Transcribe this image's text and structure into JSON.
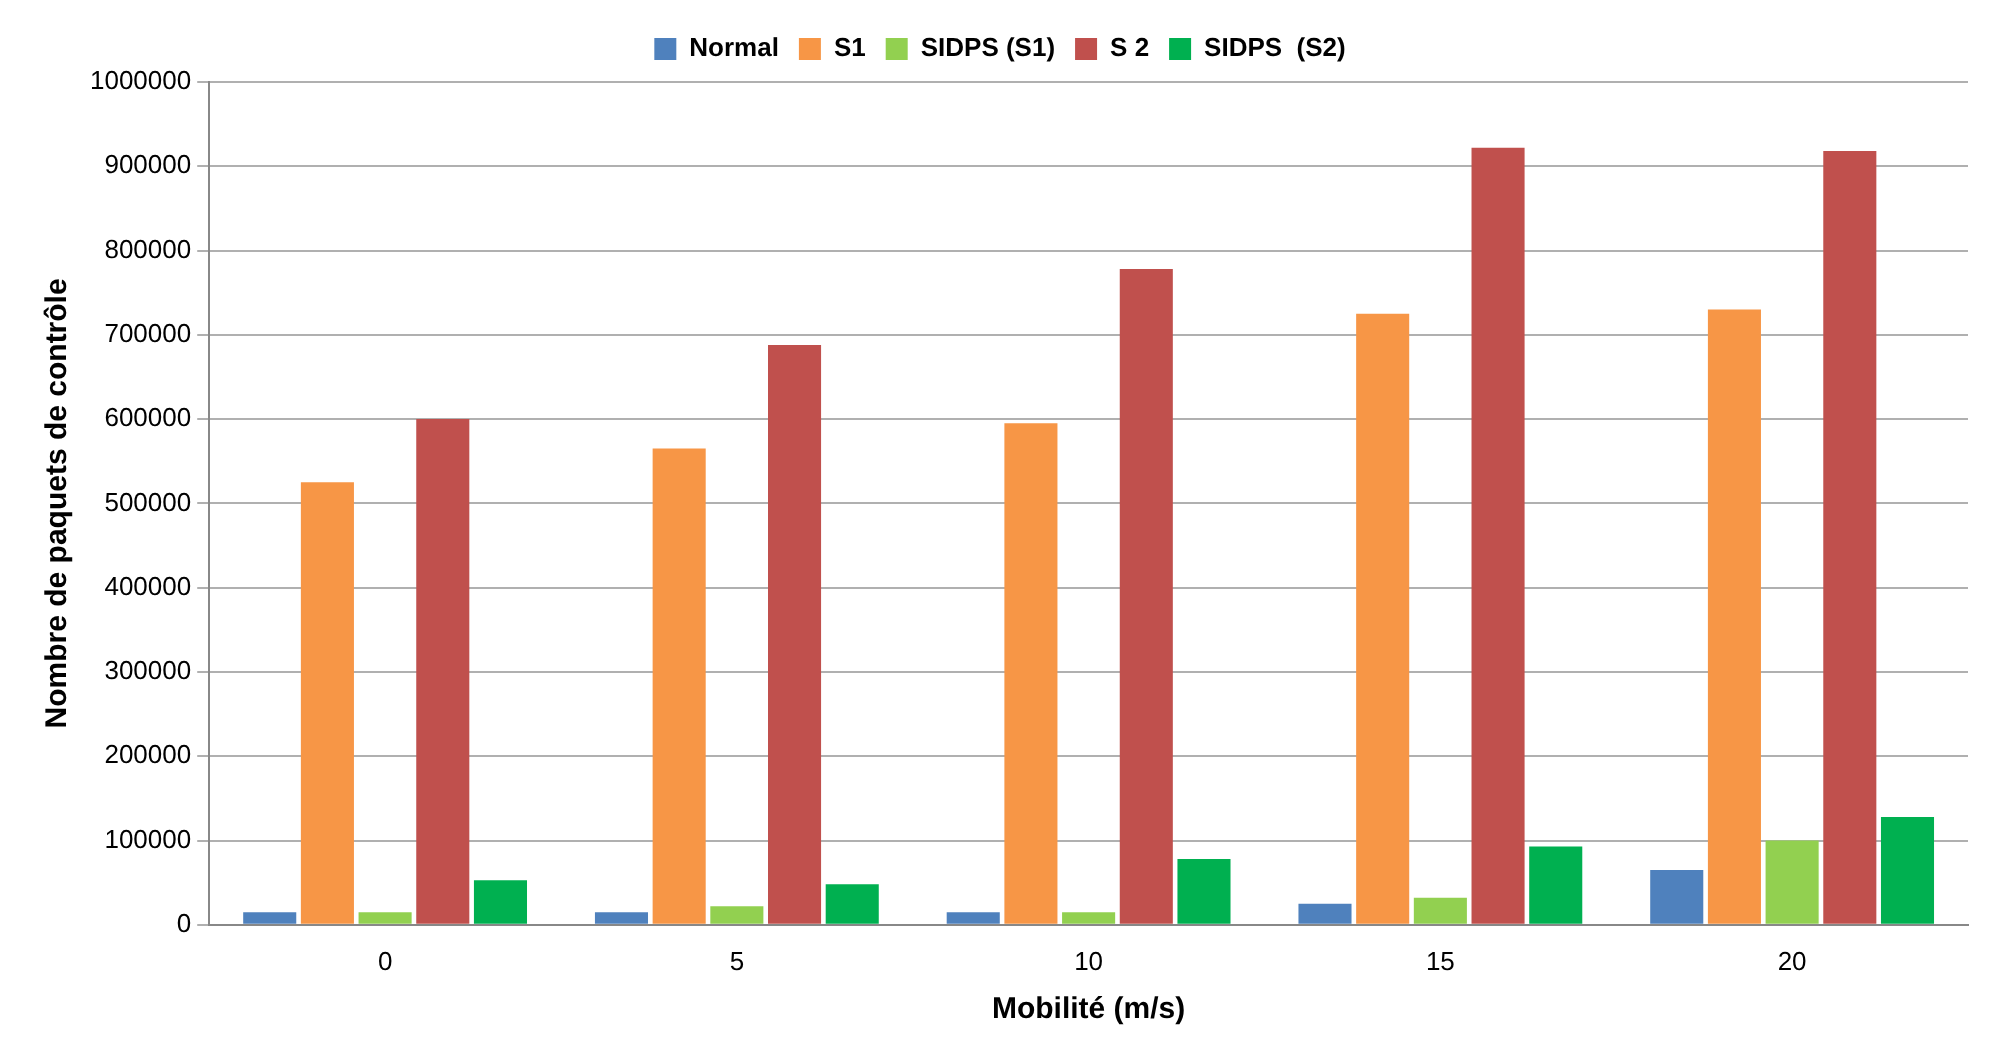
{
  "chart_data": {
    "type": "bar",
    "xlabel": "Mobilité (m/s)",
    "ylabel": "Nombre de paquets de contrôle",
    "categories": [
      "0",
      "5",
      "10",
      "15",
      "20"
    ],
    "series": [
      {
        "name": "Normal",
        "color": "#4f81bd",
        "values": [
          15000,
          15000,
          15000,
          25000,
          65000
        ]
      },
      {
        "name": "S1",
        "color": "#f79646",
        "values": [
          525000,
          565000,
          595000,
          725000,
          730000
        ]
      },
      {
        "name": "SIDPS (S1)",
        "color": "#92d050",
        "values": [
          15000,
          22000,
          15000,
          32000,
          100000
        ]
      },
      {
        "name": "S 2",
        "color": "#c0504d",
        "values": [
          600000,
          688000,
          778000,
          922000,
          918000
        ]
      },
      {
        "name": "SIDPS  (S2)",
        "color": "#00b050",
        "values": [
          53000,
          48000,
          78000,
          93000,
          128000
        ]
      }
    ],
    "ylim": [
      0,
      1000000
    ],
    "yticks": [
      0,
      100000,
      200000,
      300000,
      400000,
      500000,
      600000,
      700000,
      800000,
      900000,
      1000000
    ],
    "grid": "y",
    "legend": "top"
  }
}
